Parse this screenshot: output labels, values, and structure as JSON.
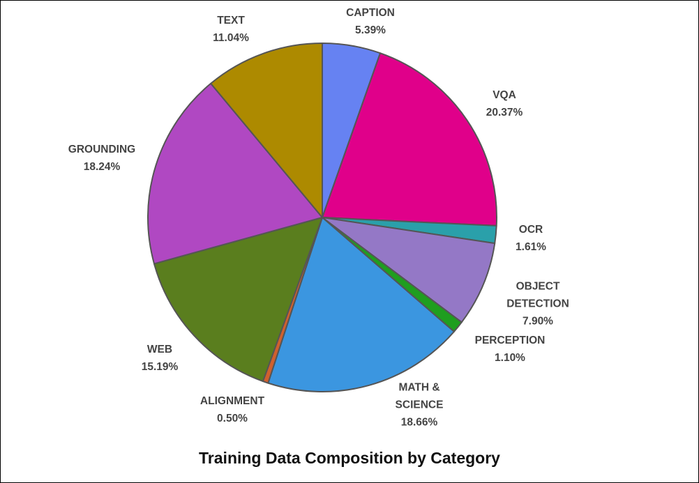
{
  "chart_data": {
    "type": "pie",
    "title": "Training Data Composition by Category",
    "categories": [
      "CAPTION",
      "VQA",
      "OCR",
      "OBJECT DETECTION",
      "PERCEPTION",
      "MATH & SCIENCE",
      "ALIGNMENT",
      "WEB",
      "GROUNDING",
      "TEXT"
    ],
    "values": [
      5.39,
      20.37,
      1.61,
      7.9,
      1.1,
      18.66,
      0.5,
      15.19,
      18.24,
      11.04
    ],
    "value_labels": [
      "5.39%",
      "20.37%",
      "1.61%",
      "7.90%",
      "1.10%",
      "18.66%",
      "0.50%",
      "15.19%",
      "18.24%",
      "11.04%"
    ],
    "colors": [
      "#6682f2",
      "#e0008a",
      "#2aa0aa",
      "#9478c6",
      "#1f9e1f",
      "#3b96e0",
      "#d0602e",
      "#5a7e1e",
      "#b048c2",
      "#ad8a00"
    ]
  }
}
